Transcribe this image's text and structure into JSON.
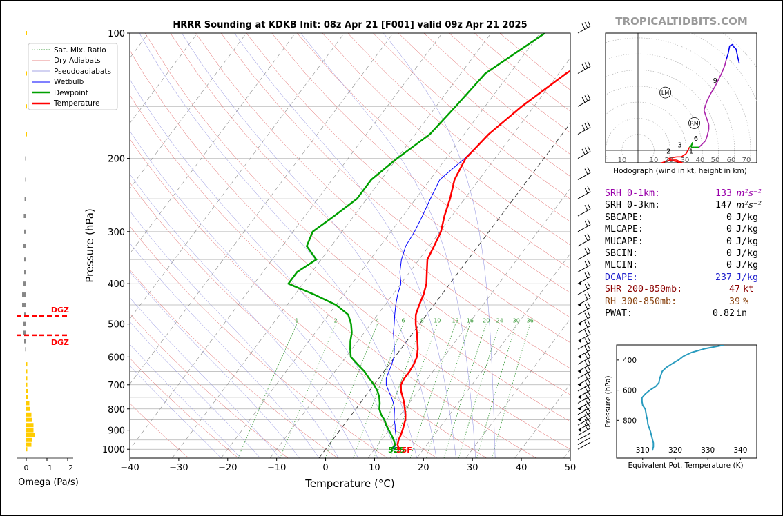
{
  "title": "HRRR Sounding at KDKB Init: 08z Apr 21 [F001] valid 09z Apr 21 2025",
  "watermark": "TROPICALTIDBITS.COM",
  "legend": [
    "Sat. Mix. Ratio",
    "Dry Adiabats",
    "Pseudoadiabats",
    "Wetbulb",
    "Dewpoint",
    "Temperature"
  ],
  "colors": {
    "temperature": "#ff0000",
    "dewpoint": "#00a000",
    "wetbulb": "#0000ff",
    "dry_adiabat": "#e06060",
    "pseudoadiabat": "#8888dd",
    "mixratio": "#3a9a3a",
    "omega_neg": "#ffcc00",
    "omega_pos": "#888888",
    "dgz": "#ff0000",
    "theta_e": "#2a9cbf",
    "srh": "#9900aa",
    "dcape": "#2020cc",
    "shr": "#8b0000",
    "rh": "#8b4513"
  },
  "surface_label": {
    "dewpoint": "55",
    "temperature": "55F"
  },
  "dgz_label": "DGZ",
  "omega": {
    "xlabel": "Omega (Pa/s)",
    "ticks": [
      "0",
      "−1",
      "−2"
    ],
    "profile": [
      {
        "p": 1000,
        "w": -0.05
      },
      {
        "p": 975,
        "w": -0.25
      },
      {
        "p": 950,
        "w": -0.3
      },
      {
        "p": 925,
        "w": -0.4
      },
      {
        "p": 900,
        "w": -0.35
      },
      {
        "p": 875,
        "w": -0.35
      },
      {
        "p": 850,
        "w": -0.3
      },
      {
        "p": 825,
        "w": -0.25
      },
      {
        "p": 800,
        "w": -0.2
      },
      {
        "p": 775,
        "w": -0.15
      },
      {
        "p": 750,
        "w": -0.1
      },
      {
        "p": 725,
        "w": -0.1
      },
      {
        "p": 700,
        "w": -0.05
      },
      {
        "p": 675,
        "w": -0.05
      },
      {
        "p": 650,
        "w": -0.05
      },
      {
        "p": 625,
        "w": -0.05
      },
      {
        "p": 575,
        "w": 0.05
      },
      {
        "p": 550,
        "w": 0.1
      },
      {
        "p": 525,
        "w": 0.15
      },
      {
        "p": 500,
        "w": 0.15
      },
      {
        "p": 475,
        "w": 0.1
      },
      {
        "p": 450,
        "w": 0.2
      },
      {
        "p": 425,
        "w": 0.2
      },
      {
        "p": 400,
        "w": 0.15
      },
      {
        "p": 375,
        "w": 0.1
      },
      {
        "p": 350,
        "w": 0.1
      },
      {
        "p": 325,
        "w": 0.15
      },
      {
        "p": 300,
        "w": 0.1
      },
      {
        "p": 275,
        "w": 0.12
      },
      {
        "p": 250,
        "w": 0.08
      },
      {
        "p": 225,
        "w": 0.05
      },
      {
        "p": 200,
        "w": 0.05
      },
      {
        "p": 175,
        "w": -0.02
      },
      {
        "p": 150,
        "w": -0.02
      },
      {
        "p": 125,
        "w": -0.02
      },
      {
        "p": 100,
        "w": -0.02
      }
    ],
    "dgz_p": [
      478,
      532
    ]
  },
  "chart_data": {
    "type": "line",
    "title": "HRRR Sounding at KDKB Init: 08z Apr 21 [F001] valid 09z Apr 21 2025",
    "xlabel": "Temperature (°C)",
    "ylabel": "Pressure (hPa)",
    "xlim": [
      -40,
      50
    ],
    "ylim": [
      1050,
      100
    ],
    "xticks": [
      -40,
      -30,
      -20,
      -10,
      0,
      10,
      20,
      30,
      40,
      50
    ],
    "yticks": [
      100,
      200,
      300,
      400,
      500,
      600,
      700,
      800,
      900,
      1000
    ],
    "mixing_ratio_labels": [
      "1",
      "2",
      "4",
      "6",
      "8",
      "10",
      "13",
      "16",
      "20",
      "24",
      "30",
      "36"
    ],
    "series": [
      {
        "name": "Temperature",
        "points": [
          [
            1000,
            15
          ],
          [
            975,
            14
          ],
          [
            950,
            13.5
          ],
          [
            925,
            13.2
          ],
          [
            900,
            12.8
          ],
          [
            875,
            12.3
          ],
          [
            850,
            11.8
          ],
          [
            825,
            11
          ],
          [
            800,
            10
          ],
          [
            775,
            9
          ],
          [
            750,
            7.8
          ],
          [
            725,
            6.5
          ],
          [
            700,
            5.5
          ],
          [
            675,
            5.2
          ],
          [
            650,
            5.2
          ],
          [
            625,
            5
          ],
          [
            600,
            4.5
          ],
          [
            575,
            3.5
          ],
          [
            550,
            2.2
          ],
          [
            525,
            0.8
          ],
          [
            500,
            -0.8
          ],
          [
            475,
            -2.2
          ],
          [
            450,
            -3
          ],
          [
            425,
            -3.7
          ],
          [
            400,
            -4.8
          ],
          [
            375,
            -6.5
          ],
          [
            350,
            -8.3
          ],
          [
            325,
            -9
          ],
          [
            300,
            -9.8
          ],
          [
            275,
            -11.5
          ],
          [
            250,
            -13
          ],
          [
            225,
            -15
          ],
          [
            200,
            -16
          ],
          [
            175,
            -15
          ],
          [
            150,
            -12.5
          ],
          [
            125,
            -8.5
          ],
          [
            100,
            -1.5
          ]
        ]
      },
      {
        "name": "Dewpoint",
        "points": [
          [
            1000,
            13.5
          ],
          [
            975,
            13.5
          ],
          [
            950,
            12.5
          ],
          [
            925,
            11.3
          ],
          [
            900,
            10
          ],
          [
            875,
            8.7
          ],
          [
            850,
            7.5
          ],
          [
            825,
            6
          ],
          [
            800,
            4.8
          ],
          [
            775,
            4
          ],
          [
            750,
            3
          ],
          [
            725,
            1.7
          ],
          [
            700,
            0
          ],
          [
            675,
            -2
          ],
          [
            650,
            -4
          ],
          [
            625,
            -6.5
          ],
          [
            600,
            -9
          ],
          [
            575,
            -10.3
          ],
          [
            550,
            -11.5
          ],
          [
            525,
            -12.5
          ],
          [
            500,
            -14
          ],
          [
            475,
            -16
          ],
          [
            450,
            -20
          ],
          [
            425,
            -26
          ],
          [
            400,
            -33
          ],
          [
            375,
            -33
          ],
          [
            350,
            -31
          ],
          [
            325,
            -35
          ],
          [
            300,
            -36
          ],
          [
            275,
            -34
          ],
          [
            250,
            -32
          ],
          [
            225,
            -32
          ],
          [
            200,
            -30
          ],
          [
            175,
            -27
          ],
          [
            150,
            -26
          ],
          [
            125,
            -25
          ],
          [
            100,
            -19
          ]
        ]
      },
      {
        "name": "Wetbulb",
        "points": [
          [
            1000,
            13.8
          ],
          [
            975,
            13.7
          ],
          [
            950,
            13
          ],
          [
            925,
            12.2
          ],
          [
            900,
            11.3
          ],
          [
            875,
            10.5
          ],
          [
            850,
            9.5
          ],
          [
            825,
            8.7
          ],
          [
            800,
            7.9
          ],
          [
            775,
            6.8
          ],
          [
            750,
            5.5
          ],
          [
            725,
            4
          ],
          [
            700,
            2.5
          ],
          [
            675,
            1.5
          ],
          [
            650,
            1
          ],
          [
            625,
            0.5
          ],
          [
            600,
            -0.2
          ],
          [
            575,
            -1.3
          ],
          [
            550,
            -2.6
          ],
          [
            525,
            -4
          ],
          [
            500,
            -5.2
          ],
          [
            475,
            -6.5
          ],
          [
            450,
            -7.8
          ],
          [
            425,
            -9
          ],
          [
            400,
            -10
          ],
          [
            375,
            -12
          ],
          [
            350,
            -13.6
          ],
          [
            325,
            -14.8
          ],
          [
            300,
            -15.2
          ],
          [
            275,
            -16
          ],
          [
            250,
            -17
          ],
          [
            225,
            -18
          ],
          [
            200,
            -16.2
          ],
          [
            175,
            -15
          ],
          [
            150,
            -12.5
          ],
          [
            125,
            -8.5
          ],
          [
            100,
            -1.5
          ]
        ]
      }
    ],
    "wind_barbs_p": [
      1000,
      975,
      950,
      925,
      900,
      875,
      850,
      825,
      800,
      775,
      750,
      725,
      700,
      675,
      650,
      625,
      600,
      575,
      550,
      525,
      500,
      475,
      450,
      425,
      400,
      375,
      350,
      325,
      300,
      275,
      250,
      225,
      200,
      175,
      150,
      125,
      100
    ]
  },
  "hodograph": {
    "caption": "Hodograph (wind in kt, height in km)",
    "ticks": [
      "10",
      "10",
      "20",
      "30",
      "40",
      "50",
      "60",
      "70"
    ],
    "markers": [
      "1",
      "2",
      "3",
      "6",
      "9"
    ],
    "storm_motion": [
      "LM",
      "RM"
    ],
    "chart_data": {
      "type": "line",
      "points": [
        [
          5,
          -19
        ],
        [
          12,
          -12
        ],
        [
          14,
          -8
        ],
        [
          20,
          -6
        ],
        [
          24,
          -6
        ],
        [
          28,
          -8
        ],
        [
          31,
          -9
        ],
        [
          28,
          -8
        ],
        [
          20,
          -6
        ],
        [
          19,
          -5
        ],
        [
          24,
          -4
        ],
        [
          27,
          -4
        ],
        [
          30,
          -2
        ],
        [
          32,
          2
        ],
        [
          33,
          3
        ],
        [
          34,
          5
        ],
        [
          33,
          2
        ],
        [
          35,
          2
        ],
        [
          38,
          2
        ],
        [
          42,
          6
        ],
        [
          43,
          9
        ],
        [
          44,
          13
        ],
        [
          44,
          16
        ],
        [
          43,
          19
        ],
        [
          42,
          22
        ],
        [
          41,
          25
        ],
        [
          43,
          31
        ],
        [
          45,
          35
        ],
        [
          48,
          40
        ],
        [
          50,
          44
        ],
        [
          52,
          48
        ],
        [
          54,
          53
        ],
        [
          55,
          57
        ],
        [
          56,
          60
        ],
        [
          57,
          65
        ],
        [
          59,
          66
        ],
        [
          59,
          65
        ],
        [
          61,
          63
        ],
        [
          62,
          58
        ],
        [
          63,
          54
        ]
      ]
    }
  },
  "params": [
    {
      "label": "SRH 0-1km:",
      "value": "133",
      "unit": "m²s⁻²",
      "color": "#9900aa"
    },
    {
      "label": "SRH 0-3km:",
      "value": "147",
      "unit": "m²s⁻²",
      "color": "#000000"
    },
    {
      "label": "SBCAPE:",
      "value": "0",
      "unit": "J/kg",
      "color": "#000000"
    },
    {
      "label": "MLCAPE:",
      "value": "0",
      "unit": "J/kg",
      "color": "#000000"
    },
    {
      "label": "MUCAPE:",
      "value": "0",
      "unit": "J/kg",
      "color": "#000000"
    },
    {
      "label": "SBCIN:",
      "value": "0",
      "unit": "J/kg",
      "color": "#000000"
    },
    {
      "label": "MLCIN:",
      "value": "0",
      "unit": "J/kg",
      "color": "#000000"
    },
    {
      "label": "DCAPE:",
      "value": "237",
      "unit": "J/kg",
      "color": "#2020cc"
    },
    {
      "label": "SHR 200-850mb:",
      "value": "47",
      "unit": "kt",
      "color": "#8b0000"
    },
    {
      "label": "RH 300-850mb:",
      "value": "39",
      "unit": "%",
      "color": "#8b4513"
    },
    {
      "label": "PWAT:",
      "value": "0.82",
      "unit": "in",
      "color": "#000000"
    }
  ],
  "theta_e": {
    "xlabel": "Equivalent Pot. Temperature (K)",
    "ylabel": "Pressure (hPa)",
    "xticks": [
      310,
      320,
      330,
      340
    ],
    "yticks": [
      400,
      600,
      800
    ],
    "chart_data": {
      "type": "line",
      "points": [
        [
          1000,
          313
        ],
        [
          975,
          313.3
        ],
        [
          950,
          313.3
        ],
        [
          925,
          313
        ],
        [
          900,
          312.7
        ],
        [
          875,
          312.4
        ],
        [
          850,
          312
        ],
        [
          825,
          311.6
        ],
        [
          800,
          311.5
        ],
        [
          775,
          311.2
        ],
        [
          750,
          311
        ],
        [
          725,
          310.8
        ],
        [
          700,
          310
        ],
        [
          675,
          309.8
        ],
        [
          650,
          309.8
        ],
        [
          625,
          310.8
        ],
        [
          600,
          312.2
        ],
        [
          575,
          314
        ],
        [
          550,
          315
        ],
        [
          525,
          315.2
        ],
        [
          500,
          315.6
        ],
        [
          475,
          316
        ],
        [
          450,
          317.2
        ],
        [
          425,
          319
        ],
        [
          400,
          321
        ],
        [
          375,
          322.5
        ],
        [
          350,
          325
        ],
        [
          325,
          329
        ],
        [
          300,
          335
        ]
      ]
    }
  }
}
